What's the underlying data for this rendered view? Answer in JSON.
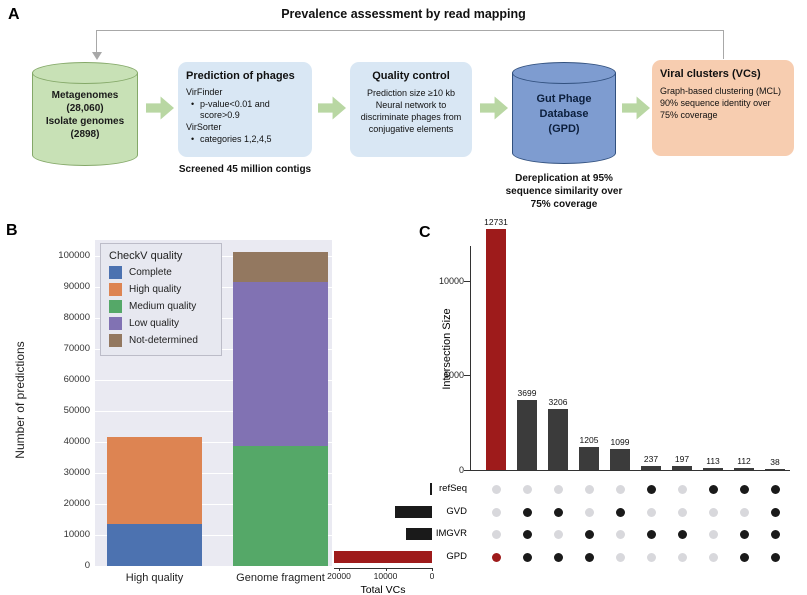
{
  "figure": {
    "panel_a_label": "A",
    "panel_b_label": "B",
    "panel_c_label": "C"
  },
  "flowchart": {
    "title": "Prevalence assessment by read mapping",
    "metagenomes_db": {
      "lines": [
        "Metagenomes",
        "(28,060)",
        "Isolate genomes",
        "(2898)"
      ]
    },
    "prediction_box": {
      "title": "Prediction of phages",
      "items": [
        {
          "name": "VirFinder",
          "bullet": "p-value<0.01 and score>0.9"
        },
        {
          "name": "VirSorter",
          "bullet": "categories 1,2,4,5"
        }
      ],
      "caption": "Screened 45 million contigs"
    },
    "qc_box": {
      "title": "Quality control",
      "body_line1": "Prediction size ≥10 kb",
      "body_line2": "Neural network to discriminate phages from conjugative elements"
    },
    "gpd_db": {
      "lines": [
        "Gut Phage",
        "Database",
        "(GPD)"
      ],
      "caption": "Dereplication at 95% sequence similarity over 75% coverage"
    },
    "vc_box": {
      "title": "Viral clusters (VCs)",
      "body_line1": "Graph-based clustering (MCL)",
      "body_line2": "90% sequence identity over 75% coverage"
    }
  },
  "chart_data": [
    {
      "type": "bar",
      "stacked": true,
      "ylabel": "Number of predictions",
      "categories": [
        "High quality",
        "Genome fragment"
      ],
      "legend_title": "CheckV quality",
      "series": [
        {
          "name": "Complete",
          "color": "#4C72B0",
          "values": [
            13500,
            0
          ]
        },
        {
          "name": "High quality",
          "color": "#DD8452",
          "values": [
            28000,
            0
          ]
        },
        {
          "name": "Medium quality",
          "color": "#55A868",
          "values": [
            0,
            38500
          ]
        },
        {
          "name": "Low quality",
          "color": "#8172B3",
          "values": [
            0,
            53000
          ]
        },
        {
          "name": "Not-determined",
          "color": "#937860",
          "values": [
            0,
            9500
          ]
        }
      ],
      "ylim": [
        0,
        105000
      ],
      "yticks": [
        0,
        10000,
        20000,
        30000,
        40000,
        50000,
        60000,
        70000,
        80000,
        90000,
        100000
      ],
      "grid": true,
      "plot_bg": "#EAEAF2"
    },
    {
      "type": "upset",
      "ylabel": "Intersection Size",
      "set_axis_label": "Total VCs",
      "sets": [
        "refSeq",
        "GVD",
        "IMGVR",
        "GPD"
      ],
      "set_sizes": [
        500,
        8042,
        5488,
        20991
      ],
      "set_size_ticks": [
        20000,
        10000,
        0
      ],
      "yticks": [
        0,
        5000,
        10000
      ],
      "ylim": [
        0,
        13400
      ],
      "highlight_set": "GPD",
      "highlight_color": "#9E1B1B",
      "bar_color": "#3B3B3B",
      "absent_dot_color": "#D8D8DC",
      "intersections": [
        {
          "value": 12731,
          "sets": [
            "GPD"
          ],
          "highlight": true
        },
        {
          "value": 3699,
          "sets": [
            "GVD",
            "IMGVR",
            "GPD"
          ],
          "highlight": false
        },
        {
          "value": 3206,
          "sets": [
            "GVD",
            "GPD"
          ],
          "highlight": false
        },
        {
          "value": 1205,
          "sets": [
            "IMGVR",
            "GPD"
          ],
          "highlight": false
        },
        {
          "value": 1099,
          "sets": [
            "GVD"
          ],
          "highlight": false
        },
        {
          "value": 237,
          "sets": [
            "refSeq",
            "IMGVR"
          ],
          "highlight": false
        },
        {
          "value": 197,
          "sets": [
            "IMGVR"
          ],
          "highlight": false
        },
        {
          "value": 113,
          "sets": [
            "refSeq"
          ],
          "highlight": false
        },
        {
          "value": 112,
          "sets": [
            "refSeq",
            "IMGVR",
            "GPD"
          ],
          "highlight": false
        },
        {
          "value": 38,
          "sets": [
            "refSeq",
            "GVD",
            "IMGVR",
            "GPD"
          ],
          "highlight": false
        }
      ]
    }
  ]
}
